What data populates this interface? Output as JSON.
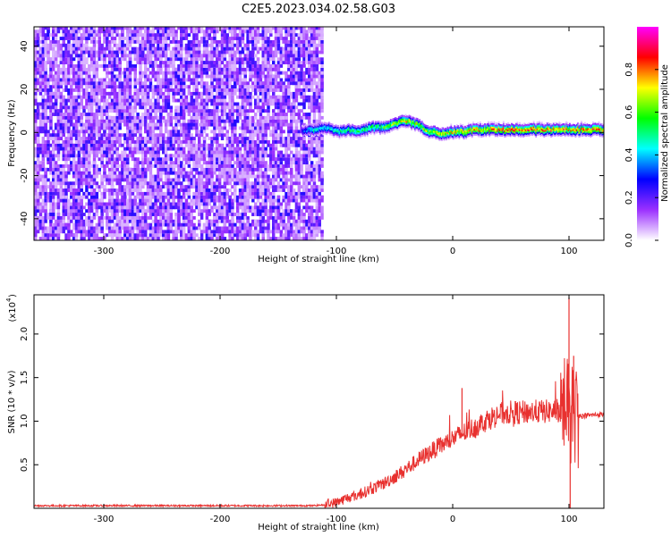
{
  "title": "C2E5.2023.034.02.58.G03",
  "chart_data": [
    {
      "type": "heatmap",
      "xlabel": "Height of straight line (km)",
      "ylabel": "Frequency (Hz)",
      "xlim": [
        -360,
        130
      ],
      "ylim": [
        -50,
        49
      ],
      "xticks": [
        -300,
        -200,
        -100,
        0,
        100
      ],
      "xtick_labels": [
        "-300",
        "-200",
        "-100",
        "0",
        "100"
      ],
      "yticks": [
        -40,
        -20,
        0,
        20,
        40
      ],
      "ytick_labels": [
        "-40",
        "-20",
        "0",
        "20",
        "40"
      ],
      "grid": false,
      "colorbar": {
        "label": "Normalized spectral amplitude",
        "range": [
          0,
          1
        ],
        "ticks": [
          0,
          0.2,
          0.4,
          0.6,
          0.8
        ],
        "tick_labels": [
          "0.0",
          "0.2",
          "0.4",
          "0.6",
          "0.8"
        ],
        "colormap": [
          "#ffffff",
          "#9b30ff",
          "#0000ff",
          "#00ffff",
          "#00ff00",
          "#ffff00",
          "#ff0000",
          "#ff00ff"
        ]
      },
      "noise_region": {
        "x": [
          -360,
          -112
        ],
        "amplitude": [
          0.05,
          0.2
        ]
      },
      "ridge": {
        "x": [
          -130,
          -120,
          -110,
          -100,
          -90,
          -80,
          -70,
          -60,
          -50,
          -40,
          -30,
          -20,
          -10,
          0,
          10,
          20,
          40,
          60,
          80,
          95,
          100,
          110,
          120,
          130
        ],
        "freq": [
          0,
          1,
          2,
          0,
          1,
          0,
          2,
          2,
          4,
          5,
          3,
          0,
          -1,
          0,
          0,
          1,
          1,
          1,
          1,
          1,
          1,
          1,
          1,
          1
        ],
        "amplitude": [
          0.3,
          0.5,
          0.45,
          0.5,
          0.55,
          0.55,
          0.6,
          0.6,
          0.7,
          0.75,
          0.7,
          0.7,
          0.75,
          0.75,
          0.8,
          0.8,
          0.85,
          0.85,
          0.85,
          0.85,
          0.8,
          0.85,
          0.85,
          0.85
        ]
      }
    },
    {
      "type": "line",
      "xlabel": "Height of straight line (km)",
      "ylabel": "SNR (10 * v/v)",
      "exponent_label": "(x10",
      "exponent_value": "4",
      "xlim": [
        -360,
        130
      ],
      "ylim": [
        0,
        2.45
      ],
      "xticks": [
        -300,
        -200,
        -100,
        0,
        100
      ],
      "xtick_labels": [
        "-300",
        "-200",
        "-100",
        "0",
        "100"
      ],
      "yticks": [
        0.5,
        1.0,
        1.5,
        2.0
      ],
      "ytick_labels": [
        "0.5",
        "1.0",
        "1.5",
        "2.0"
      ],
      "grid": false,
      "series": [
        {
          "color": "#e8312f",
          "x": [
            -360,
            -300,
            -250,
            -200,
            -150,
            -120,
            -110,
            -100,
            -90,
            -80,
            -70,
            -60,
            -50,
            -40,
            -30,
            -20,
            -10,
            0,
            10,
            20,
            30,
            40,
            50,
            60,
            70,
            80,
            90,
            95,
            100,
            105,
            110,
            120,
            130
          ],
          "values": [
            0.03,
            0.03,
            0.03,
            0.03,
            0.03,
            0.03,
            0.04,
            0.07,
            0.12,
            0.16,
            0.22,
            0.28,
            0.36,
            0.45,
            0.55,
            0.64,
            0.72,
            0.8,
            0.87,
            0.94,
            1.02,
            1.08,
            1.1,
            1.1,
            1.11,
            1.11,
            1.12,
            1.13,
            1.1,
            1.08,
            1.06,
            1.07,
            1.08
          ],
          "spikes": [
            {
              "x": 8,
              "value": 1.38
            },
            {
              "x": 100,
              "value": 2.42
            },
            {
              "x": 101,
              "value": 0.0
            },
            {
              "x": 104,
              "value": 1.75
            }
          ]
        }
      ]
    }
  ]
}
